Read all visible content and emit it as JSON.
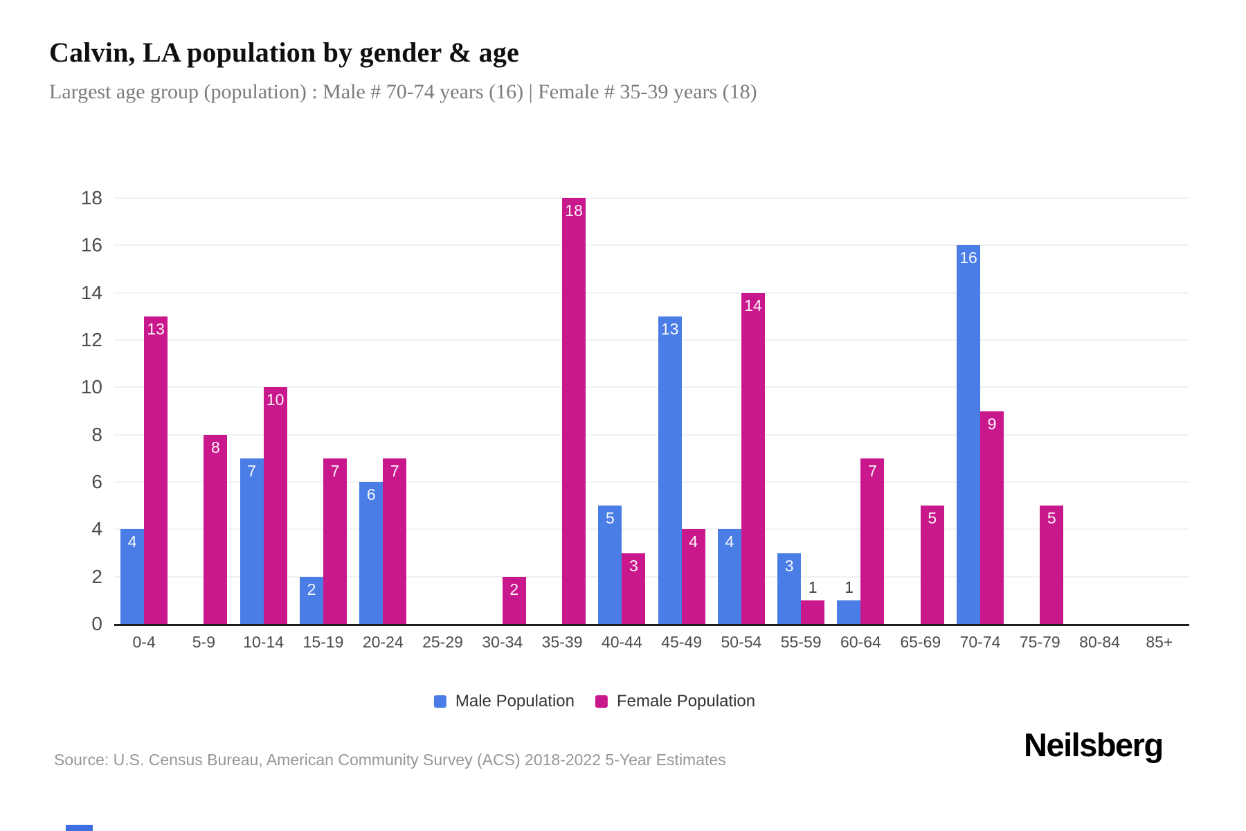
{
  "header": {
    "title": "Calvin, LA population by gender & age",
    "subtitle": "Largest age group (population) : Male # 70-74 years (16) | Female # 35-39 years (18)"
  },
  "chart_data": {
    "type": "bar",
    "title": "Calvin, LA population by gender & age",
    "categories": [
      "0-4",
      "5-9",
      "10-14",
      "15-19",
      "20-24",
      "25-29",
      "30-34",
      "35-39",
      "40-44",
      "45-49",
      "50-54",
      "55-59",
      "60-64",
      "65-69",
      "70-74",
      "75-79",
      "80-84",
      "85+"
    ],
    "series": [
      {
        "name": "Male Population",
        "color": "#4b7de6",
        "values": [
          4,
          0,
          7,
          2,
          6,
          0,
          0,
          0,
          5,
          13,
          4,
          3,
          1,
          0,
          16,
          0,
          0,
          0
        ]
      },
      {
        "name": "Female Population",
        "color": "#c9188c",
        "values": [
          13,
          8,
          10,
          7,
          7,
          0,
          2,
          18,
          3,
          4,
          14,
          1,
          7,
          5,
          9,
          5,
          0,
          0
        ]
      }
    ],
    "xlabel": "",
    "ylabel": "",
    "ylim": [
      0,
      18
    ],
    "yticks": [
      0,
      2,
      4,
      6,
      8,
      10,
      12,
      14,
      16,
      18
    ],
    "grid": "horizontal-light",
    "legend_position": "bottom",
    "bar_value_labels": "shown on bars; values of 1 shown in dark above bar, values >= 2 shown in white inside bar top"
  },
  "footer": {
    "source": "Source: U.S. Census Bureau, American Community Survey (ACS) 2018-2022 5-Year Estimates",
    "brand": "Neilsberg",
    "strip_color": "#3d6fe0"
  }
}
